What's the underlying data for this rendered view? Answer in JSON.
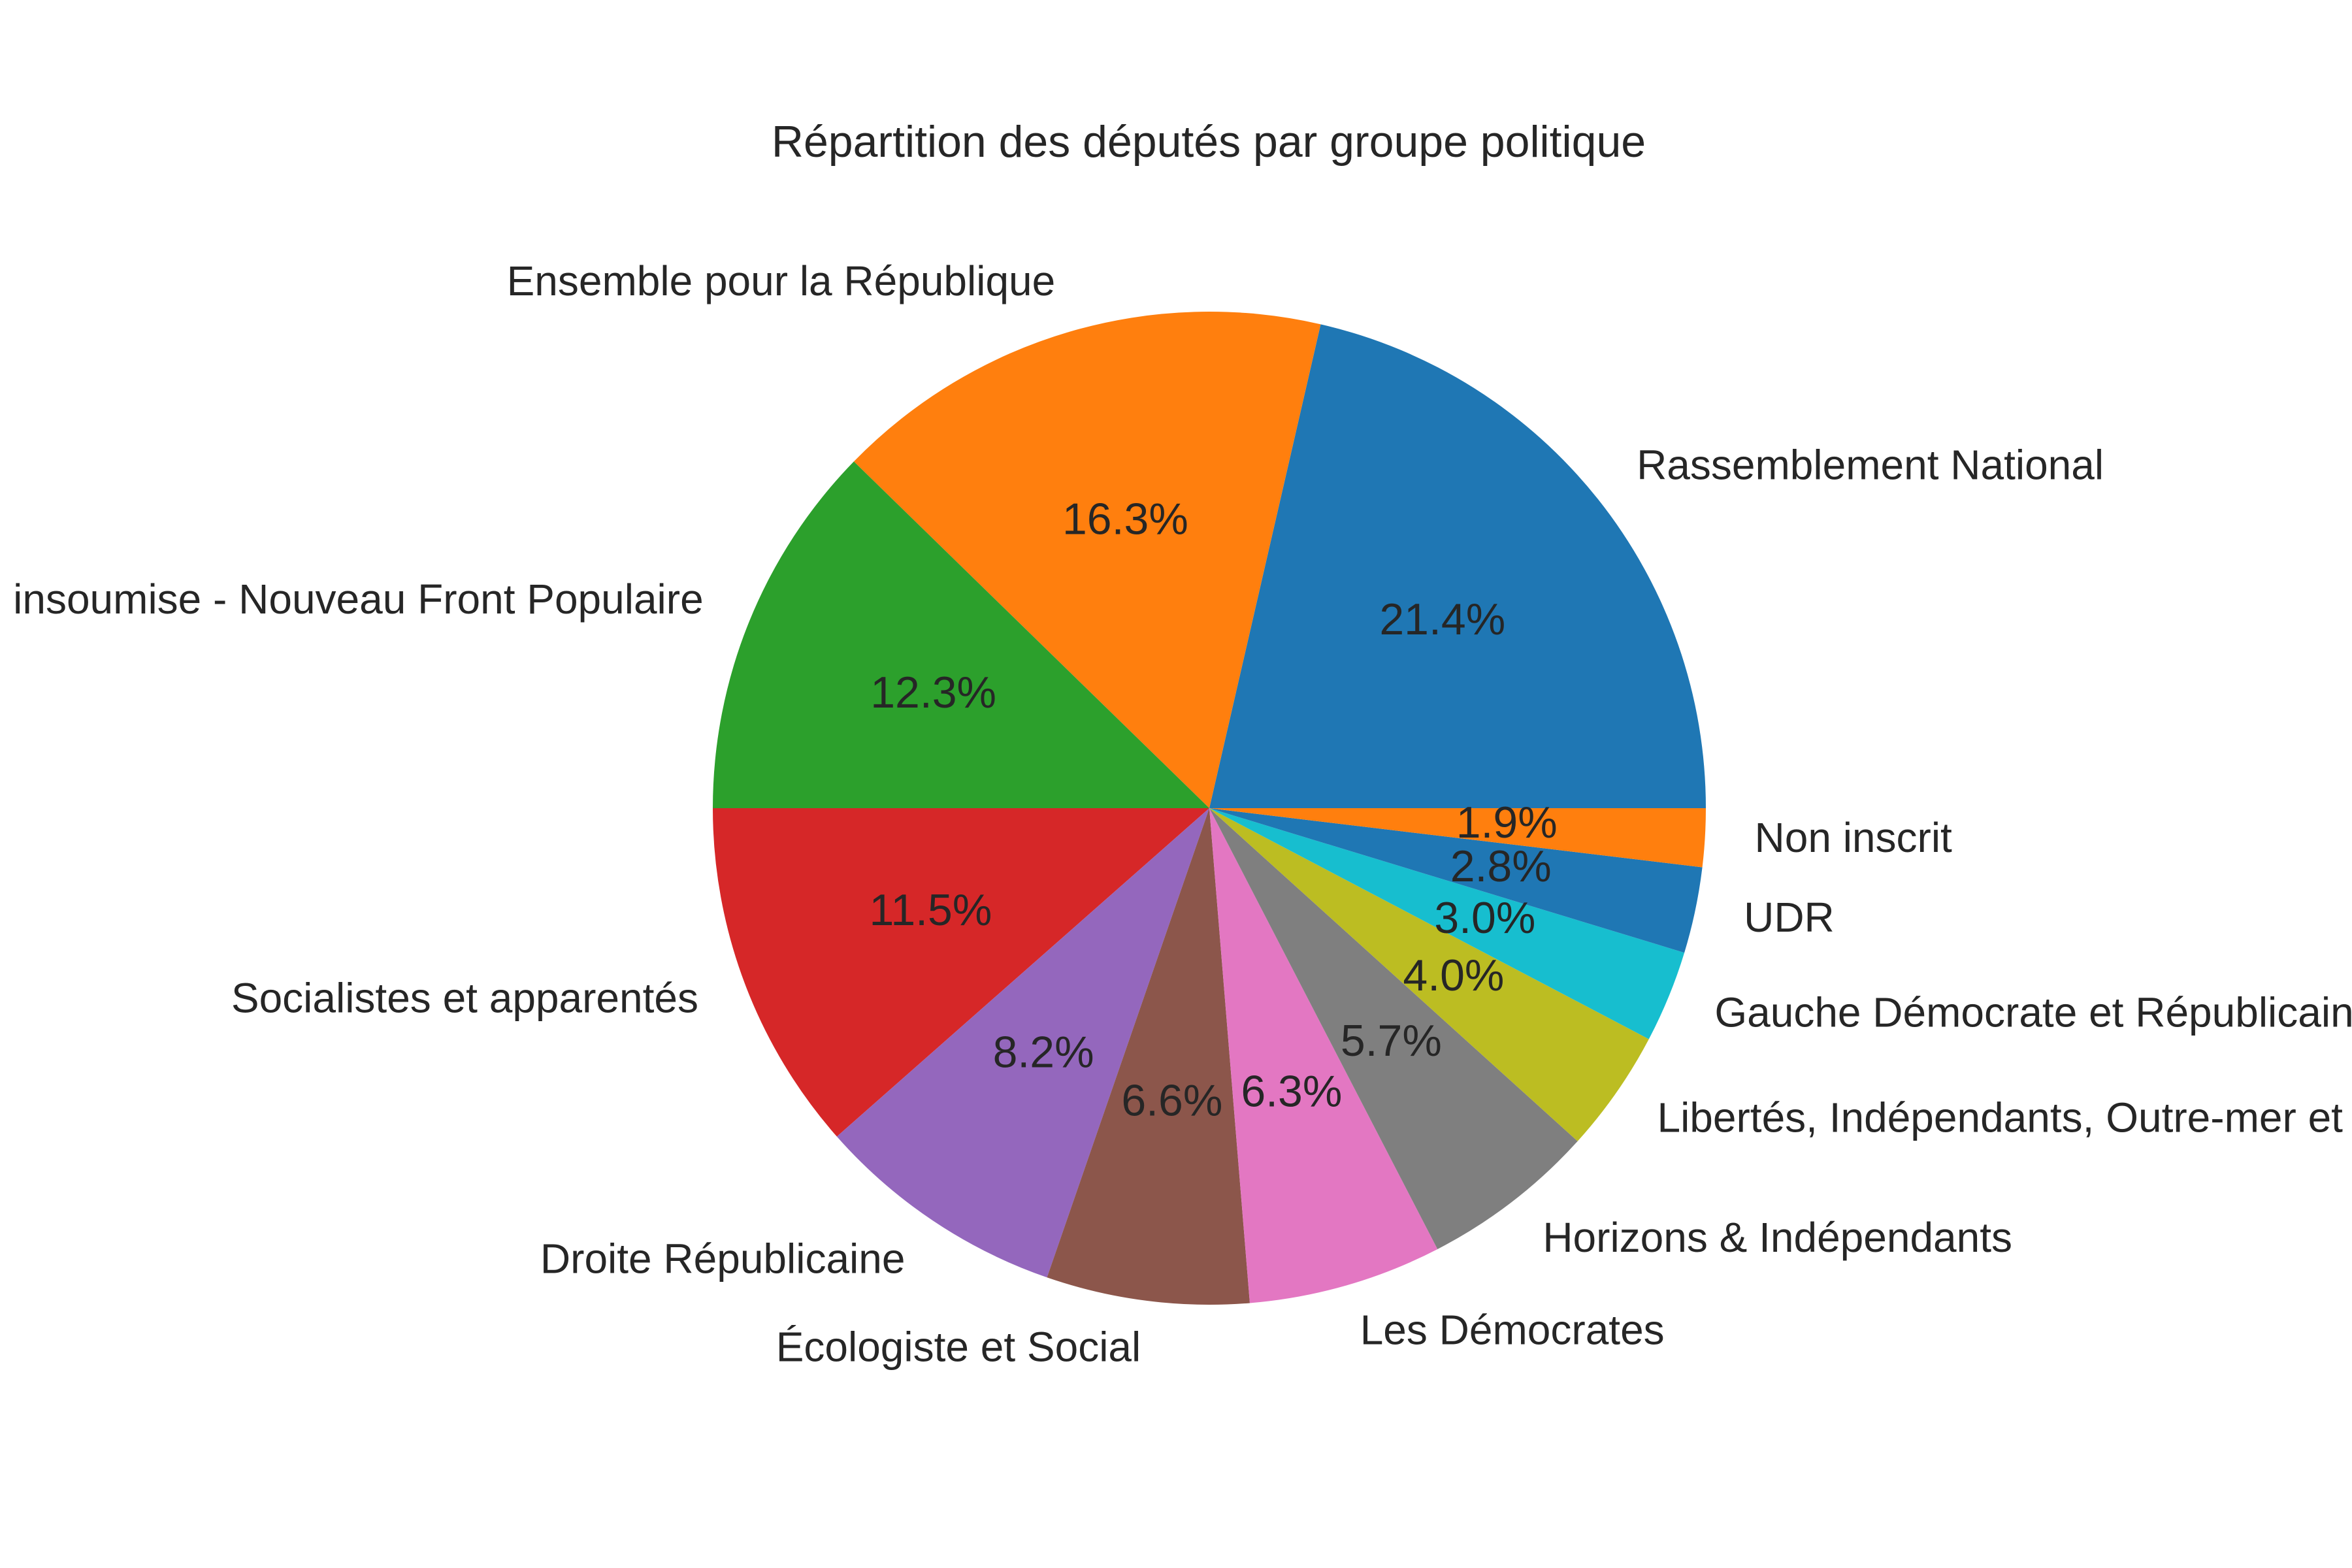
{
  "chart_data": {
    "type": "pie",
    "title": "Répartition des députés par groupe politique",
    "start_angle_deg": 0,
    "direction": "counterclockwise",
    "legend": "none",
    "slices": [
      {
        "label": "Rassemblement National",
        "value": 21.4,
        "pct_label": "21.4%",
        "color": "#1f77b4"
      },
      {
        "label": "Ensemble pour la République",
        "value": 16.3,
        "pct_label": "16.3%",
        "color": "#ff7f0e"
      },
      {
        "label": "La France insoumise - Nouveau Front Populaire",
        "value": 12.3,
        "pct_label": "12.3%",
        "color": "#2ca02c"
      },
      {
        "label": "Socialistes et apparentés",
        "value": 11.5,
        "pct_label": "11.5%",
        "color": "#d62728"
      },
      {
        "label": "Droite Républicaine",
        "value": 8.2,
        "pct_label": "8.2%",
        "color": "#9467bd"
      },
      {
        "label": "Écologiste et Social",
        "value": 6.6,
        "pct_label": "6.6%",
        "color": "#8c564b"
      },
      {
        "label": "Les Démocrates",
        "value": 6.3,
        "pct_label": "6.3%",
        "color": "#e377c2"
      },
      {
        "label": "Horizons & Indépendants",
        "value": 5.7,
        "pct_label": "5.7%",
        "color": "#7f7f7f"
      },
      {
        "label": "Libertés, Indépendants, Outre-mer et Territoires",
        "value": 4.0,
        "pct_label": "4.0%",
        "color": "#bcbd22"
      },
      {
        "label": "Gauche Démocrate et Républicaine",
        "value": 3.0,
        "pct_label": "3.0%",
        "color": "#17becf"
      },
      {
        "label": "UDR",
        "value": 2.8,
        "pct_label": "2.8%",
        "color": "#1f77b4"
      },
      {
        "label": "Non inscrit",
        "value": 1.9,
        "pct_label": "1.9%",
        "color": "#ff7f0e"
      }
    ]
  }
}
